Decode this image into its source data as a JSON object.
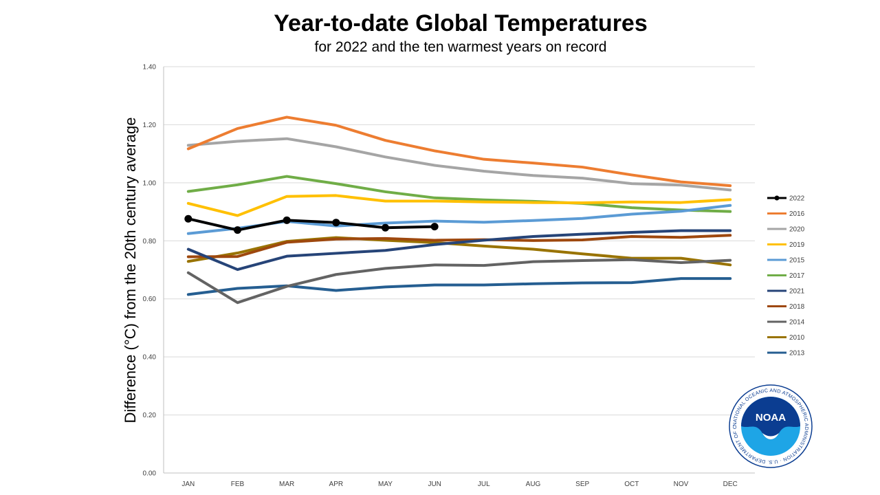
{
  "chart_data": {
    "type": "line",
    "title": "Year-to-date Global Temperatures",
    "subtitle": "for 2022 and the ten warmest years on record",
    "xlabel": "",
    "ylabel": "Difference (°C) from the 20th century average",
    "ylim": [
      0,
      1.4
    ],
    "yticks": [
      "0.00",
      "0.20",
      "0.40",
      "0.60",
      "0.80",
      "1.00",
      "1.20",
      "1.40"
    ],
    "categories": [
      "JAN",
      "FEB",
      "MAR",
      "APR",
      "MAY",
      "JUN",
      "JUL",
      "AUG",
      "SEP",
      "OCT",
      "NOV",
      "DEC"
    ],
    "grid": true,
    "legend_position": "right",
    "series": [
      {
        "name": "2022",
        "color": "#000000",
        "markers": true,
        "values": [
          0.876,
          0.837,
          0.871,
          0.863,
          0.845,
          0.849,
          null,
          null,
          null,
          null,
          null,
          null
        ]
      },
      {
        "name": "2016",
        "color": "#ed7d31",
        "values": [
          1.117,
          1.187,
          1.226,
          1.198,
          1.146,
          1.11,
          1.081,
          1.068,
          1.054,
          1.027,
          1.003,
          0.99
        ]
      },
      {
        "name": "2020",
        "color": "#a5a5a5",
        "values": [
          1.129,
          1.143,
          1.152,
          1.124,
          1.089,
          1.06,
          1.04,
          1.025,
          1.016,
          0.997,
          0.992,
          0.975
        ]
      },
      {
        "name": "2019",
        "color": "#ffc000",
        "values": [
          0.929,
          0.887,
          0.953,
          0.956,
          0.937,
          0.937,
          0.934,
          0.932,
          0.931,
          0.934,
          0.932,
          0.942
        ]
      },
      {
        "name": "2015",
        "color": "#5b9bd5",
        "values": [
          0.825,
          0.843,
          0.867,
          0.851,
          0.861,
          0.868,
          0.864,
          0.87,
          0.877,
          0.892,
          0.902,
          0.922
        ]
      },
      {
        "name": "2017",
        "color": "#70ad47",
        "values": [
          0.97,
          0.993,
          1.022,
          0.997,
          0.969,
          0.948,
          0.941,
          0.936,
          0.929,
          0.914,
          0.906,
          0.901
        ]
      },
      {
        "name": "2021",
        "color": "#264478",
        "values": [
          0.771,
          0.701,
          0.747,
          0.757,
          0.767,
          0.787,
          0.802,
          0.815,
          0.823,
          0.829,
          0.835,
          0.835
        ]
      },
      {
        "name": "2018",
        "color": "#9e480e",
        "values": [
          0.745,
          0.746,
          0.795,
          0.806,
          0.808,
          0.802,
          0.804,
          0.801,
          0.803,
          0.815,
          0.812,
          0.819
        ]
      },
      {
        "name": "2014",
        "color": "#636363",
        "values": [
          0.69,
          0.587,
          0.643,
          0.684,
          0.705,
          0.717,
          0.715,
          0.728,
          0.732,
          0.735,
          0.725,
          0.733
        ]
      },
      {
        "name": "2010",
        "color": "#997300",
        "values": [
          0.729,
          0.758,
          0.798,
          0.811,
          0.802,
          0.794,
          0.782,
          0.771,
          0.755,
          0.74,
          0.74,
          0.717
        ]
      },
      {
        "name": "2013",
        "color": "#255e91",
        "values": [
          0.615,
          0.636,
          0.645,
          0.629,
          0.641,
          0.648,
          0.648,
          0.652,
          0.655,
          0.656,
          0.67,
          0.67
        ]
      }
    ]
  },
  "logo": {
    "label": "NOAA",
    "ring_text": "NATIONAL OCEANIC AND ATMOSPHERIC ADMINISTRATION · U.S. DEPARTMENT OF COMMERCE"
  }
}
